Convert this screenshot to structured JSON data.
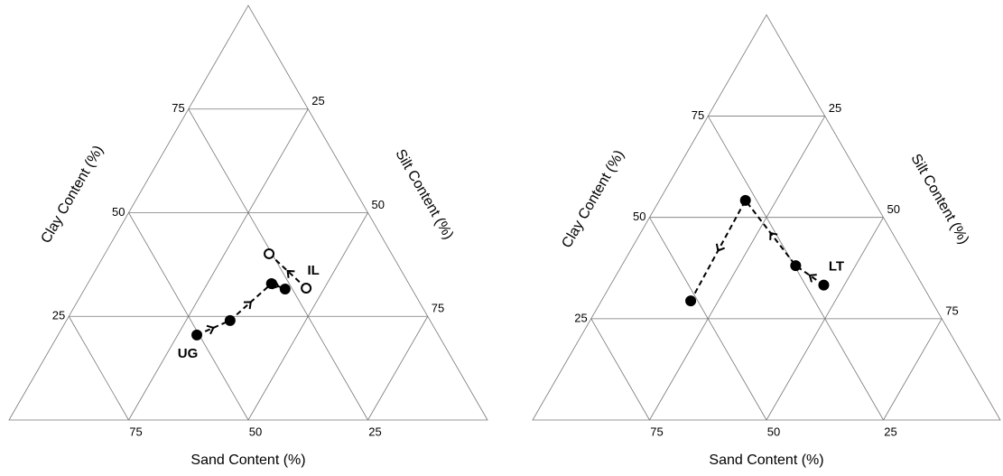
{
  "chart_data": [
    {
      "type": "ternary",
      "clay_axis": {
        "label": "Clay Content (%)",
        "ticks": [
          25,
          50,
          75
        ]
      },
      "silt_axis": {
        "label": "Silt Content (%)",
        "ticks": [
          25,
          50,
          75
        ]
      },
      "sand_axis": {
        "label": "Sand Content (%)",
        "ticks": [
          25,
          50,
          75
        ]
      },
      "grid": true,
      "series": [
        {
          "name": "UG",
          "color": "#000000",
          "marker": "filled",
          "sand": [
            50.5,
            41.8,
            28.7,
            26.5
          ],
          "silt": [
            29.0,
            34.2,
            38.4,
            41.9
          ],
          "clay": [
            20.5,
            24.0,
            32.9,
            31.6
          ]
        },
        {
          "name": "IL",
          "color": "#000000",
          "marker": "open",
          "sand": [
            22.0,
            25.6
          ],
          "silt": [
            46.2,
            34.3
          ],
          "clay": [
            31.8,
            40.1
          ]
        }
      ]
    },
    {
      "type": "ternary",
      "clay_axis": {
        "label": "Clay Content (%)",
        "ticks": [
          25,
          50,
          75
        ]
      },
      "silt_axis": {
        "label": "Silt Content (%)",
        "ticks": [
          25,
          50,
          75
        ]
      },
      "sand_axis": {
        "label": "Sand Content (%)",
        "ticks": [
          25,
          50,
          75
        ]
      },
      "grid": true,
      "series": [
        {
          "name": "LT",
          "color": "#000000",
          "marker": "filled",
          "sand": [
            21.1,
            24.7,
            27.4,
            51.5
          ],
          "silt": [
            45.6,
            37.2,
            18.4,
            19.1
          ],
          "clay": [
            33.3,
            38.1,
            54.2,
            29.4
          ]
        }
      ]
    }
  ]
}
